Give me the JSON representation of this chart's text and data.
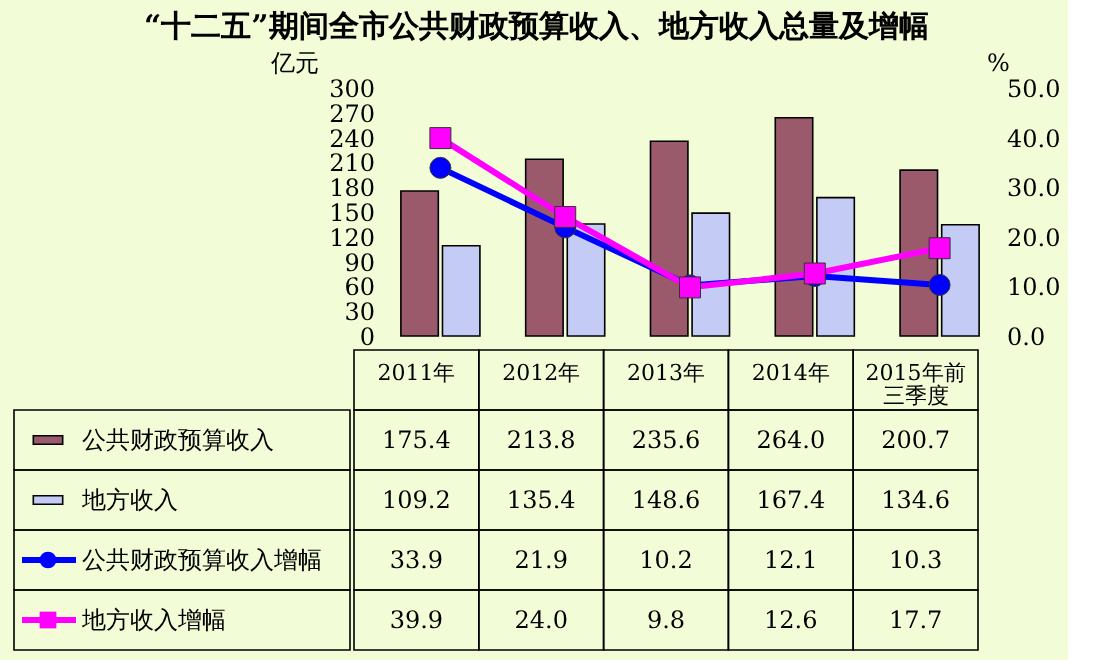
{
  "chart_data": {
    "type": "bar",
    "title": "“十二五”期间全市公共财政预算收入、地方收入总量及增幅",
    "categories": [
      "2011年",
      "2012年",
      "2013年",
      "2014年",
      "2015年前三季度"
    ],
    "series": [
      {
        "name": "公共财政预算收入",
        "color": "#9a5a6c",
        "values": [
          175.4,
          213.8,
          235.6,
          264.0,
          200.7
        ],
        "value_labels": [
          "175.4",
          "213.8",
          "235.6",
          "264.0",
          "200.7"
        ]
      },
      {
        "name": "地方收入",
        "color": "#c4ccf6",
        "values": [
          109.2,
          135.4,
          148.6,
          167.4,
          134.6
        ],
        "value_labels": [
          "109.2",
          "135.4",
          "148.6",
          "167.4",
          "134.6"
        ]
      },
      {
        "name": "公共财政预算收入增幅",
        "type": "line",
        "axis": "y2",
        "marker": "circle",
        "color": "#0000ff",
        "values": [
          33.9,
          21.9,
          10.2,
          12.1,
          10.3
        ],
        "value_labels": [
          "33.9",
          "21.9",
          "10.2",
          "12.1",
          "10.3"
        ]
      },
      {
        "name": "地方收入增幅",
        "type": "line",
        "axis": "y2",
        "marker": "square",
        "color": "#ff00ff",
        "values": [
          39.9,
          24.0,
          9.8,
          12.6,
          17.7
        ],
        "value_labels": [
          "39.9",
          "24.0",
          "9.8",
          "12.6",
          "17.7"
        ]
      }
    ],
    "ylabel": "亿元",
    "y2label": "%",
    "ylim": [
      0,
      300
    ],
    "yticks": [
      0,
      30,
      60,
      90,
      120,
      150,
      180,
      210,
      240,
      270,
      300
    ],
    "y2lim": [
      0,
      50
    ],
    "y2ticks": [
      {
        "value": 0,
        "label": "0.0"
      },
      {
        "value": 10,
        "label": "10.0"
      },
      {
        "value": 20,
        "label": "20.0"
      },
      {
        "value": 30,
        "label": "30.0"
      },
      {
        "value": 40,
        "label": "40.0"
      },
      {
        "value": 50,
        "label": "50.0"
      }
    ],
    "legend": "bottom left"
  }
}
